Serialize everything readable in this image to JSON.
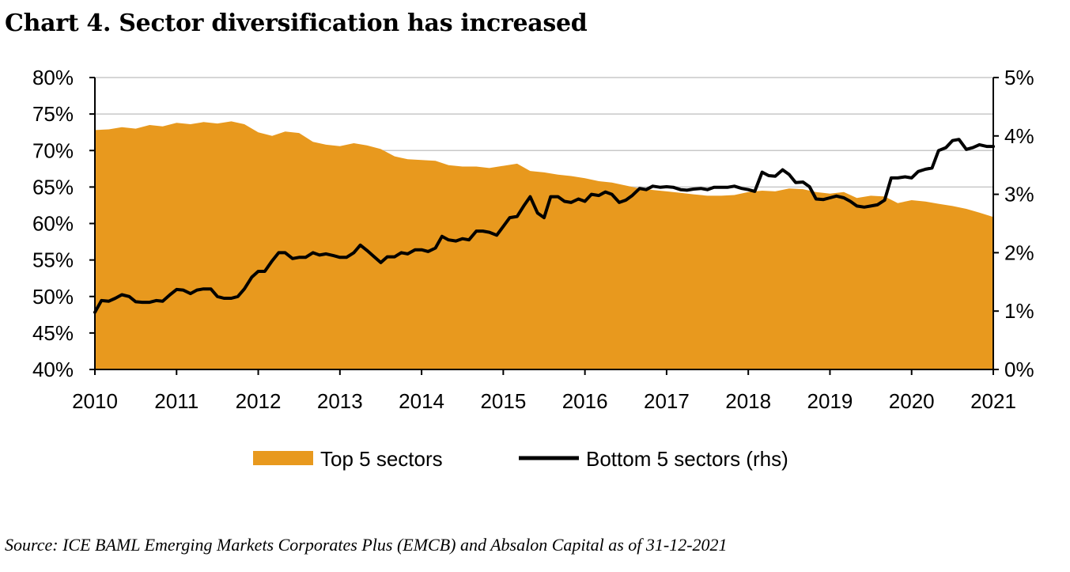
{
  "chart_data": {
    "type": "area",
    "title": "Chart 4. Sector diversification has increased",
    "source": "Source: ICE BAML Emerging Markets Corporates Plus (EMCB) and Absalon Capital as of 31-12-2021",
    "x_ticks": [
      "2010",
      "2011",
      "2012",
      "2013",
      "2014",
      "2015",
      "2016",
      "2017",
      "2018",
      "2019",
      "2020",
      "2021"
    ],
    "xlim": [
      2010,
      2021
    ],
    "y_left": {
      "ylim": [
        40,
        80
      ],
      "ticks": [
        "40%",
        "45%",
        "50%",
        "55%",
        "60%",
        "65%",
        "70%",
        "75%",
        "80%"
      ]
    },
    "y_right": {
      "ylim": [
        0,
        5
      ],
      "ticks": [
        "0%",
        "1%",
        "2%",
        "3%",
        "4%",
        "5%"
      ]
    },
    "grid": "horizontal",
    "legend_position": "bottom",
    "colors": {
      "area": "#E8991E",
      "line": "#000000",
      "grid": "#c8c8c8"
    },
    "series": [
      {
        "name": "Top 5 sectors",
        "type": "area",
        "axis": "left",
        "x": [
          2010.0,
          2010.17,
          2010.33,
          2010.5,
          2010.67,
          2010.83,
          2011.0,
          2011.17,
          2011.33,
          2011.5,
          2011.67,
          2011.83,
          2012.0,
          2012.17,
          2012.33,
          2012.5,
          2012.67,
          2012.83,
          2013.0,
          2013.17,
          2013.33,
          2013.5,
          2013.67,
          2013.83,
          2014.0,
          2014.17,
          2014.33,
          2014.5,
          2014.67,
          2014.83,
          2015.0,
          2015.17,
          2015.33,
          2015.5,
          2015.67,
          2015.83,
          2016.0,
          2016.17,
          2016.33,
          2016.5,
          2016.67,
          2016.83,
          2017.0,
          2017.17,
          2017.33,
          2017.5,
          2017.67,
          2017.83,
          2018.0,
          2018.17,
          2018.33,
          2018.5,
          2018.67,
          2018.83,
          2019.0,
          2019.17,
          2019.33,
          2019.5,
          2019.67,
          2019.83,
          2020.0,
          2020.17,
          2020.33,
          2020.5,
          2020.67,
          2020.83,
          2021.0
        ],
        "values": [
          72.8,
          72.9,
          73.2,
          73.0,
          73.5,
          73.3,
          73.8,
          73.6,
          73.9,
          73.7,
          74.0,
          73.6,
          72.5,
          72.0,
          72.6,
          72.4,
          71.2,
          70.8,
          70.6,
          71.0,
          70.7,
          70.2,
          69.2,
          68.8,
          68.7,
          68.6,
          68.0,
          67.8,
          67.8,
          67.6,
          67.9,
          68.2,
          67.2,
          67.0,
          66.7,
          66.5,
          66.2,
          65.8,
          65.6,
          65.2,
          64.8,
          64.6,
          64.4,
          64.2,
          64.0,
          63.8,
          63.8,
          63.9,
          64.3,
          64.5,
          64.4,
          64.8,
          64.7,
          64.3,
          64.1,
          64.3,
          63.5,
          63.8,
          63.7,
          62.8,
          63.2,
          63.0,
          62.7,
          62.4,
          62.0,
          61.5,
          60.9
        ]
      },
      {
        "name": "Bottom 5 sectors (rhs)",
        "type": "line",
        "axis": "right",
        "x": [
          2010.0,
          2010.08,
          2010.17,
          2010.25,
          2010.33,
          2010.42,
          2010.5,
          2010.58,
          2010.67,
          2010.75,
          2010.83,
          2010.92,
          2011.0,
          2011.08,
          2011.17,
          2011.25,
          2011.33,
          2011.42,
          2011.5,
          2011.58,
          2011.67,
          2011.75,
          2011.83,
          2011.92,
          2012.0,
          2012.08,
          2012.17,
          2012.25,
          2012.33,
          2012.42,
          2012.5,
          2012.58,
          2012.67,
          2012.75,
          2012.83,
          2012.92,
          2013.0,
          2013.08,
          2013.17,
          2013.25,
          2013.33,
          2013.42,
          2013.5,
          2013.58,
          2013.67,
          2013.75,
          2013.83,
          2013.92,
          2014.0,
          2014.08,
          2014.17,
          2014.25,
          2014.33,
          2014.42,
          2014.5,
          2014.58,
          2014.67,
          2014.75,
          2014.83,
          2014.92,
          2015.0,
          2015.08,
          2015.17,
          2015.25,
          2015.33,
          2015.42,
          2015.5,
          2015.58,
          2015.67,
          2015.75,
          2015.83,
          2015.92,
          2016.0,
          2016.08,
          2016.17,
          2016.25,
          2016.33,
          2016.42,
          2016.5,
          2016.58,
          2016.67,
          2016.75,
          2016.83,
          2016.92,
          2017.0,
          2017.08,
          2017.17,
          2017.25,
          2017.33,
          2017.42,
          2017.5,
          2017.58,
          2017.67,
          2017.75,
          2017.83,
          2017.92,
          2018.0,
          2018.08,
          2018.17,
          2018.25,
          2018.33,
          2018.42,
          2018.5,
          2018.58,
          2018.67,
          2018.75,
          2018.83,
          2018.92,
          2019.0,
          2019.08,
          2019.17,
          2019.25,
          2019.33,
          2019.42,
          2019.5,
          2019.58,
          2019.67,
          2019.75,
          2019.83,
          2019.92,
          2020.0,
          2020.08,
          2020.17,
          2020.25,
          2020.33,
          2020.42,
          2020.5,
          2020.58,
          2020.67,
          2020.75,
          2020.83,
          2020.92,
          2021.0
        ],
        "values": [
          0.98,
          1.18,
          1.17,
          1.22,
          1.28,
          1.25,
          1.16,
          1.15,
          1.15,
          1.18,
          1.17,
          1.28,
          1.37,
          1.36,
          1.3,
          1.36,
          1.38,
          1.38,
          1.25,
          1.22,
          1.22,
          1.25,
          1.38,
          1.58,
          1.68,
          1.68,
          1.86,
          2.0,
          2.0,
          1.9,
          1.92,
          1.92,
          2.0,
          1.96,
          1.98,
          1.95,
          1.92,
          1.92,
          2.0,
          2.13,
          2.04,
          1.93,
          1.83,
          1.93,
          1.93,
          2.0,
          1.98,
          2.05,
          2.05,
          2.02,
          2.08,
          2.28,
          2.22,
          2.2,
          2.24,
          2.22,
          2.37,
          2.37,
          2.35,
          2.3,
          2.45,
          2.6,
          2.62,
          2.8,
          2.96,
          2.68,
          2.6,
          2.96,
          2.96,
          2.88,
          2.86,
          2.92,
          2.88,
          3.0,
          2.98,
          3.04,
          3.0,
          2.86,
          2.9,
          2.98,
          3.1,
          3.08,
          3.14,
          3.12,
          3.13,
          3.12,
          3.08,
          3.07,
          3.09,
          3.1,
          3.08,
          3.12,
          3.12,
          3.12,
          3.14,
          3.1,
          3.08,
          3.05,
          3.38,
          3.32,
          3.31,
          3.42,
          3.34,
          3.2,
          3.21,
          3.13,
          2.92,
          2.91,
          2.94,
          2.97,
          2.94,
          2.88,
          2.8,
          2.78,
          2.8,
          2.82,
          2.9,
          3.28,
          3.28,
          3.3,
          3.28,
          3.39,
          3.43,
          3.45,
          3.75,
          3.8,
          3.92,
          3.94,
          3.77,
          3.8,
          3.85,
          3.82,
          3.82
        ]
      }
    ]
  }
}
